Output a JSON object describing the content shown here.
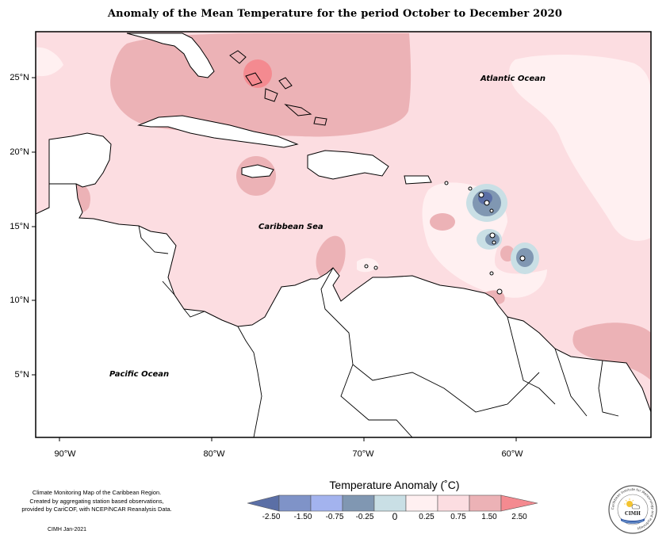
{
  "title": "Anomaly of the Mean Temperature for the period October to December 2020",
  "map": {
    "lon_range": [
      -92,
      -52
    ],
    "lat_range": [
      1,
      28
    ],
    "lat_labels": [
      "25°N",
      "20°N",
      "15°N",
      "10°N",
      "5°N"
    ],
    "lon_labels": [
      "90°W",
      "80°W",
      "70°W",
      "60°W"
    ],
    "ocean_labels": {
      "atlantic": "Atlantic Ocean",
      "caribbean": "Caribbean Sea",
      "pacific": "Pacific Ocean"
    }
  },
  "legend": {
    "title": "Temperature Anomaly (˚C)",
    "ticks": [
      "-2.50",
      "-1.50",
      "-0.75",
      "-0.25",
      "0",
      "0.25",
      "0.75",
      "1.50",
      "2.50"
    ],
    "colors": {
      "lt_-2.50": "#5b6fa6",
      "-2.50_-1.50": "#7f93c8",
      "-1.50_-0.75": "#a3b3ee",
      "-0.75_-0.25": "#8097b2",
      "-0.25_0": "#c9dfe5",
      "0_0.25": "#fff0f1",
      "0.25_0.75": "#fcdde1",
      "0.75_1.50": "#ecb2b6",
      "gt_1.50": "#f48a90"
    }
  },
  "credits": [
    "Climate Monitoring Map of the Caribbean Region.",
    "Created by aggregating station based observations,",
    "provided by CariCOF, with NCEP/NCAR Reanalysis Data."
  ],
  "stamp": "CIMH  Jan-2021",
  "logo": {
    "text": "CIMH",
    "ring_text": "Caribbean Institute for Meteorology and Hydrology"
  }
}
